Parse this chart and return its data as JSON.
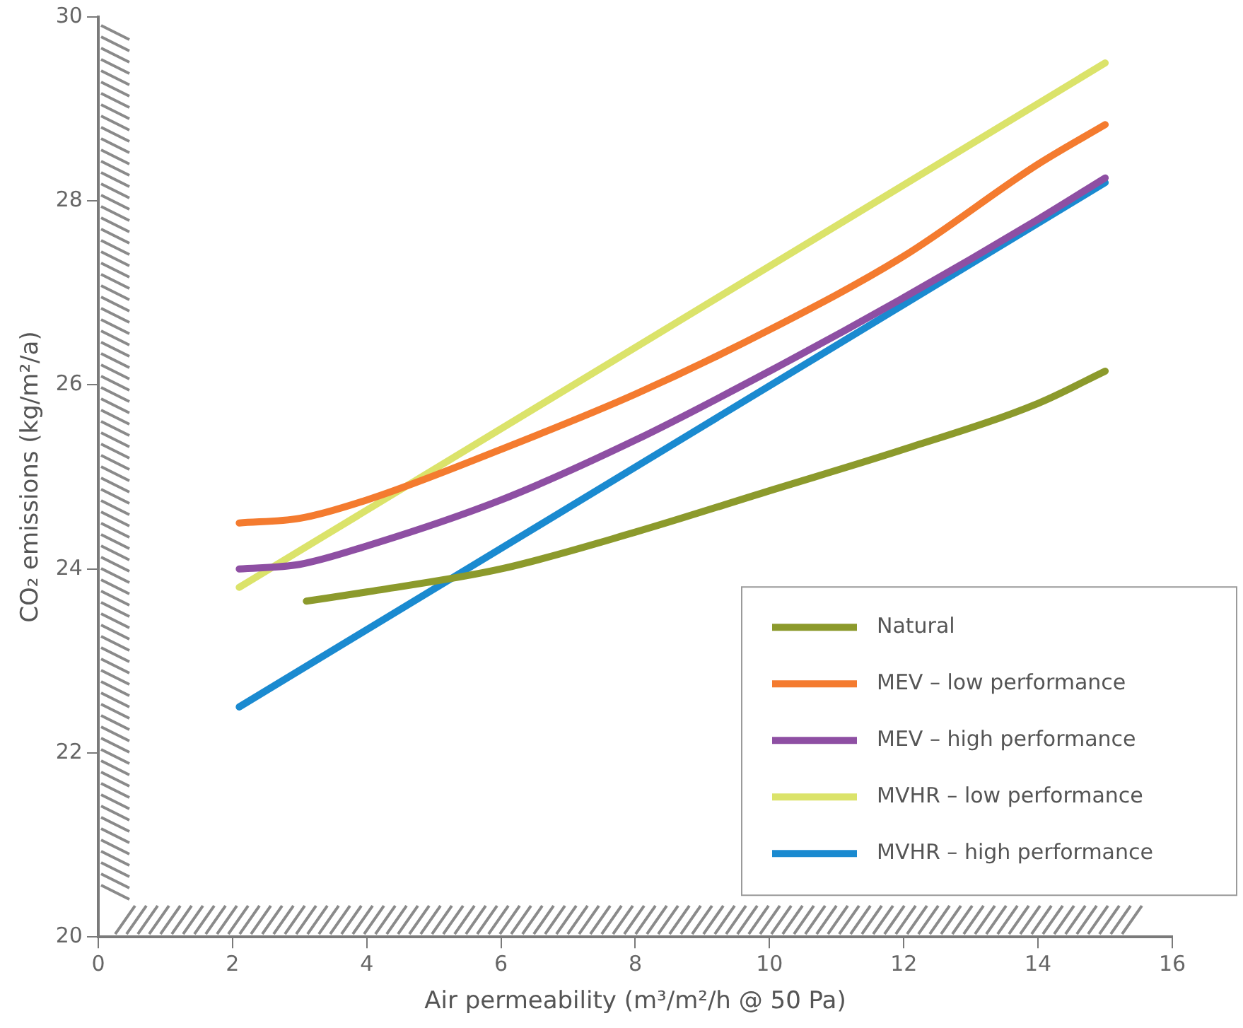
{
  "chart_data": {
    "type": "line",
    "xlabel": "Air permeability (m³/m²/h @ 50 Pa)",
    "ylabel": "CO₂ emissions (kg/m²/a)",
    "xlim": [
      0,
      16
    ],
    "xticks": [
      0,
      2,
      4,
      6,
      8,
      10,
      12,
      14,
      16
    ],
    "ylim": [
      20,
      30
    ],
    "yticks": [
      20,
      22,
      24,
      26,
      28,
      30
    ],
    "grid": false,
    "legend": "bottom right",
    "marker": "none",
    "line_style": "solid",
    "series": [
      {
        "name": "Natural",
        "color": "#8c9a2c",
        "x": [
          3.1,
          4,
          6,
          8,
          10,
          12,
          14,
          15
        ],
        "values": [
          23.65,
          23.75,
          24.0,
          24.4,
          24.85,
          25.3,
          25.8,
          26.15
        ]
      },
      {
        "name": "MEV – low performance",
        "color": "#f47b2f",
        "x": [
          2.1,
          3,
          4,
          6,
          8,
          10,
          12,
          14,
          15
        ],
        "values": [
          24.5,
          24.55,
          24.75,
          25.3,
          25.9,
          26.6,
          27.4,
          28.4,
          28.83
        ]
      },
      {
        "name": "MEV – high performance",
        "color": "#8e4fa3",
        "x": [
          2.1,
          3,
          4,
          6,
          8,
          10,
          12,
          14,
          15
        ],
        "values": [
          24.0,
          24.05,
          24.25,
          24.75,
          25.4,
          26.15,
          26.95,
          27.8,
          28.25
        ]
      },
      {
        "name": "MVHR – low performance",
        "color": "#dbe36a",
        "x": [
          2.1,
          15
        ],
        "values": [
          23.8,
          29.5
        ]
      },
      {
        "name": "MVHR – high performance",
        "color": "#1a8ad0",
        "x": [
          2.1,
          15
        ],
        "values": [
          22.5,
          28.2
        ]
      }
    ]
  }
}
